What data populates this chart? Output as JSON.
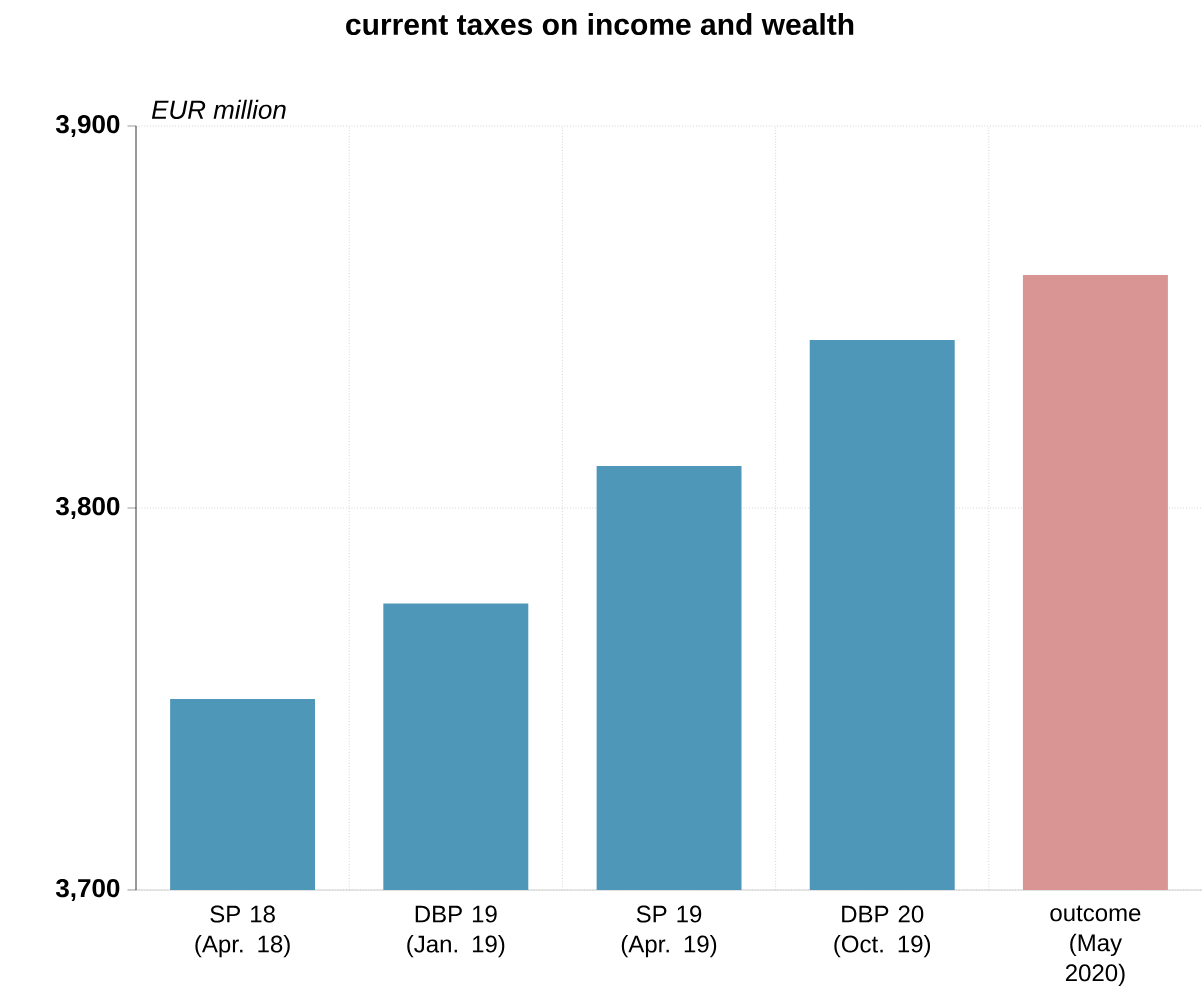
{
  "chart_data": {
    "type": "bar",
    "title": "current taxes on income and wealth",
    "ylabel": "EUR million",
    "categories": [
      "SP 18 (Apr. 18)",
      "DBP 19 (Jan. 19)",
      "SP 19 (Apr. 19)",
      "DBP 20 (Oct. 19)",
      "outcome (May 2020)"
    ],
    "values": [
      3750,
      3775,
      3811,
      3844,
      3861
    ],
    "colors": [
      "#4f97b8",
      "#4f97b8",
      "#4f97b8",
      "#4f97b8",
      "#d99594"
    ],
    "ylim": [
      3700,
      3900
    ],
    "yticks": [
      {
        "value": 3700,
        "label": "3,700"
      },
      {
        "value": 3800,
        "label": "3,800"
      },
      {
        "value": 3900,
        "label": "3,900"
      }
    ],
    "grid": true
  }
}
